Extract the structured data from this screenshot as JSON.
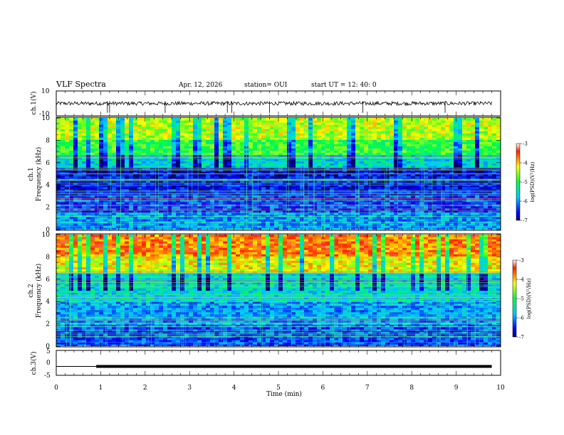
{
  "header": {
    "title": "VLF Spectra",
    "date": "Apr. 12, 2026",
    "station": "station= OUI",
    "start": "start  UT  =   12: 40: 0"
  },
  "colors": {
    "frame": "#000000",
    "signal": "#000000"
  },
  "chart_data": [
    {
      "type": "line",
      "name": "ch1-waveform",
      "ylabel": "ch.1(V)",
      "xlim": [
        0,
        10
      ],
      "ylim": [
        -10,
        10
      ],
      "yticks": [
        "10",
        "-10"
      ],
      "baseline": 0,
      "data_extent_min": 9.8,
      "spike_times": [
        1.15,
        1.2,
        2.45,
        3.85,
        3.95,
        4.8,
        6.9,
        8.75
      ]
    },
    {
      "type": "heatmap",
      "name": "ch1-spectrogram",
      "ylabel_line1": "ch.1",
      "ylabel_line2": "Frequency  (kHz)",
      "xlim": [
        0,
        10
      ],
      "ylim": [
        0,
        10
      ],
      "yticks": [
        "0",
        "2",
        "4",
        "6",
        "8",
        "10"
      ],
      "colorbar": {
        "label": "log(PSD)(V²/Hz)",
        "ticks": [
          "-3",
          "-4",
          "-5",
          "-6",
          "-7"
        ],
        "range": [
          -7,
          -3
        ]
      },
      "bands": [
        {
          "from": 0,
          "to": 1.5,
          "level": -6.0
        },
        {
          "from": 1.5,
          "to": 3.0,
          "level": -6.3
        },
        {
          "from": 3.0,
          "to": 5.5,
          "level": -6.6
        },
        {
          "from": 5.5,
          "to": 6.8,
          "level": -5.6
        },
        {
          "from": 6.8,
          "to": 8.0,
          "level": -4.9
        },
        {
          "from": 8.0,
          "to": 10,
          "level": -4.4
        }
      ]
    },
    {
      "type": "heatmap",
      "name": "ch2-spectrogram",
      "ylabel_line1": "ch.2",
      "ylabel_line2": "Frequency  (kHz)",
      "xlim": [
        0,
        10
      ],
      "ylim": [
        0,
        10
      ],
      "yticks": [
        "0",
        "2",
        "4",
        "6",
        "8",
        "10"
      ],
      "colorbar": {
        "label": "log(PSD)(V²/Hz)",
        "ticks": [
          "-3",
          "-4",
          "-5",
          "-6",
          "-7"
        ],
        "range": [
          -7,
          -3
        ]
      },
      "bands": [
        {
          "from": 0,
          "to": 2.0,
          "level": -6.3
        },
        {
          "from": 2.0,
          "to": 4.0,
          "level": -6.0
        },
        {
          "from": 4.0,
          "to": 6.5,
          "level": -5.6
        },
        {
          "from": 6.5,
          "to": 8.0,
          "level": -4.2
        },
        {
          "from": 8.0,
          "to": 10,
          "level": -3.7
        }
      ]
    },
    {
      "type": "line",
      "name": "ch3-waveform",
      "ylabel": "ch.3(V)",
      "xlim": [
        0,
        10
      ],
      "ylim": [
        -5,
        5
      ],
      "yticks": [
        "5",
        "0",
        "-5"
      ],
      "level": -1.5,
      "step_time": 0.9,
      "data_extent_min": 9.8
    }
  ],
  "x_axis": {
    "label": "Time  (min)",
    "ticks": [
      "0",
      "1",
      "2",
      "3",
      "4",
      "5",
      "6",
      "7",
      "8",
      "9",
      "10"
    ]
  }
}
